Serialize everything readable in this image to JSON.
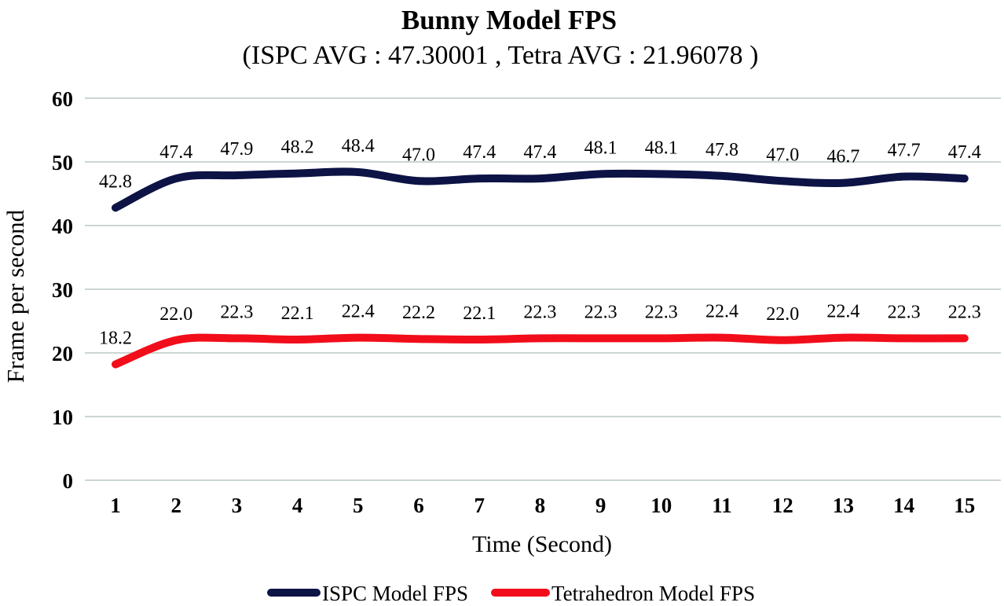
{
  "chart_data": {
    "type": "line",
    "title": "Bunny Model FPS",
    "subtitle": "(ISPC AVG : 47.30001 , Tetra AVG : 21.96078 )",
    "xlabel": "Time (Second)",
    "ylabel": "Frame per second",
    "x": [
      1,
      2,
      3,
      4,
      5,
      6,
      7,
      8,
      9,
      10,
      11,
      12,
      13,
      14,
      15
    ],
    "y_ticks": [
      0,
      10,
      20,
      30,
      40,
      50,
      60
    ],
    "ylim": [
      0,
      60
    ],
    "grid": true,
    "legend_position": "bottom",
    "series": [
      {
        "name": "ISPC Model FPS",
        "color": "#0d1345",
        "values": [
          42.8,
          47.4,
          47.9,
          48.2,
          48.4,
          47.0,
          47.4,
          47.4,
          48.1,
          48.1,
          47.8,
          47.0,
          46.7,
          47.7,
          47.4
        ]
      },
      {
        "name": "Tetrahedron Model FPS",
        "color": "#f20d1a",
        "values": [
          18.2,
          22.0,
          22.3,
          22.1,
          22.4,
          22.2,
          22.1,
          22.3,
          22.3,
          22.3,
          22.4,
          22.0,
          22.4,
          22.3,
          22.3
        ]
      }
    ],
    "colors": {
      "gridline": "#ccd6d2",
      "text": "#000000",
      "background": "#ffffff"
    }
  }
}
